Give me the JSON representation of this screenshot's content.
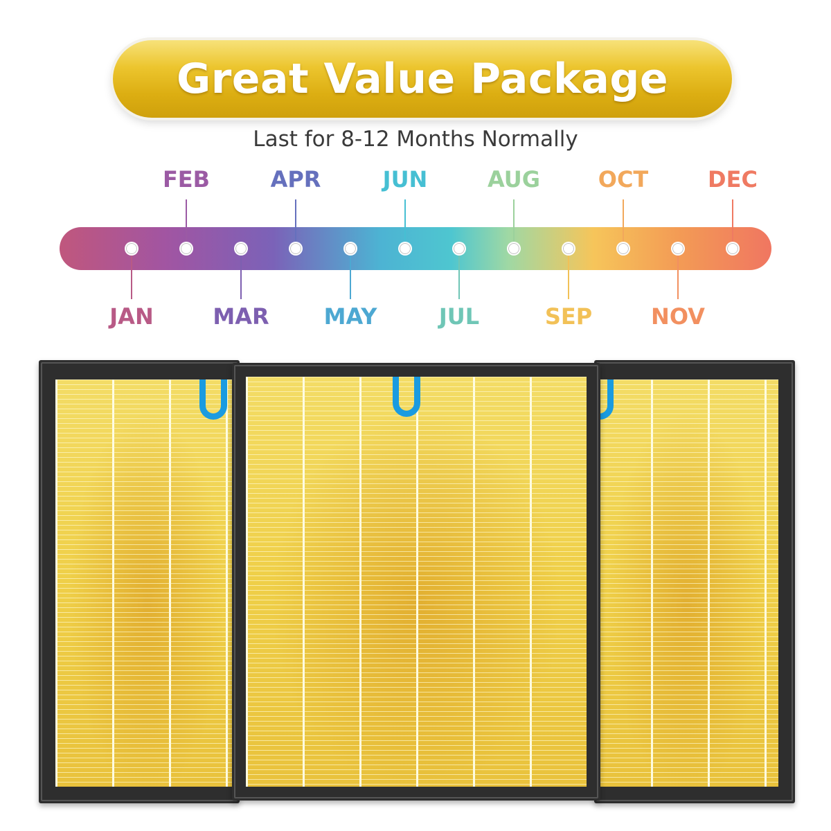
{
  "banner": {
    "title": "Great Value Package"
  },
  "subtitle": "Last for 8-12 Months Normally",
  "months": [
    {
      "label": "JAN",
      "color": "#b85a86",
      "position": "below"
    },
    {
      "label": "FEB",
      "color": "#9b5aa4",
      "position": "above"
    },
    {
      "label": "MAR",
      "color": "#7d5fb0",
      "position": "below"
    },
    {
      "label": "APR",
      "color": "#6570bd",
      "position": "above"
    },
    {
      "label": "MAY",
      "color": "#4da8d2",
      "position": "below"
    },
    {
      "label": "JUN",
      "color": "#46bfd3",
      "position": "above"
    },
    {
      "label": "JUL",
      "color": "#6fc6b6",
      "position": "below"
    },
    {
      "label": "AUG",
      "color": "#9bd19c",
      "position": "above"
    },
    {
      "label": "SEP",
      "color": "#f2c157",
      "position": "below"
    },
    {
      "label": "OCT",
      "color": "#f2a85b",
      "position": "above"
    },
    {
      "label": "NOV",
      "color": "#f29060",
      "position": "below"
    },
    {
      "label": "DEC",
      "color": "#ef7a62",
      "position": "above"
    }
  ],
  "colors": {
    "banner_gold": "#dcae12",
    "frame": "#2e2e2e",
    "filter_media": "#f1d24e",
    "pull_tab": "#1a9be0"
  },
  "product": {
    "filter_count": 3
  }
}
